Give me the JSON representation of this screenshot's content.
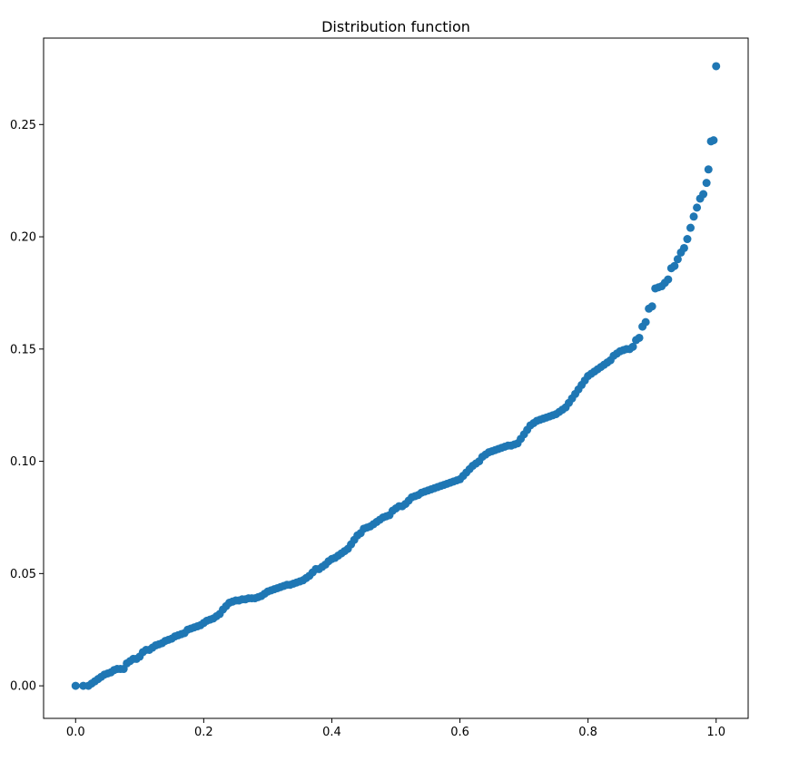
{
  "chart_data": {
    "type": "scatter",
    "title": "Distribution function",
    "xlabel": "",
    "ylabel": "",
    "xlim": [
      -0.05,
      1.05
    ],
    "ylim": [
      -0.0145,
      0.2885
    ],
    "xticks": [
      0.0,
      0.2,
      0.4,
      0.6,
      0.8,
      1.0
    ],
    "xtick_labels": [
      "0.0",
      "0.2",
      "0.4",
      "0.6",
      "0.8",
      "1.0"
    ],
    "yticks": [
      0.0,
      0.05,
      0.1,
      0.15,
      0.2,
      0.25
    ],
    "ytick_labels": [
      "0.00",
      "0.05",
      "0.10",
      "0.15",
      "0.20",
      "0.25"
    ],
    "grid": false,
    "marker_color": "#1f77b4",
    "points": [
      [
        0.0,
        0.0
      ],
      [
        0.012,
        0.0
      ],
      [
        0.02,
        0.0
      ],
      [
        0.025,
        0.001
      ],
      [
        0.03,
        0.002
      ],
      [
        0.035,
        0.003
      ],
      [
        0.04,
        0.004
      ],
      [
        0.045,
        0.005
      ],
      [
        0.05,
        0.0055
      ],
      [
        0.055,
        0.006
      ],
      [
        0.06,
        0.007
      ],
      [
        0.065,
        0.0075
      ],
      [
        0.07,
        0.0075
      ],
      [
        0.075,
        0.0075
      ],
      [
        0.08,
        0.01
      ],
      [
        0.085,
        0.011
      ],
      [
        0.09,
        0.012
      ],
      [
        0.095,
        0.012
      ],
      [
        0.1,
        0.013
      ],
      [
        0.105,
        0.015
      ],
      [
        0.11,
        0.016
      ],
      [
        0.115,
        0.016
      ],
      [
        0.12,
        0.017
      ],
      [
        0.125,
        0.018
      ],
      [
        0.13,
        0.0185
      ],
      [
        0.135,
        0.019
      ],
      [
        0.14,
        0.02
      ],
      [
        0.145,
        0.0205
      ],
      [
        0.15,
        0.021
      ],
      [
        0.155,
        0.022
      ],
      [
        0.16,
        0.0225
      ],
      [
        0.165,
        0.023
      ],
      [
        0.17,
        0.0235
      ],
      [
        0.175,
        0.025
      ],
      [
        0.18,
        0.0255
      ],
      [
        0.185,
        0.026
      ],
      [
        0.19,
        0.0265
      ],
      [
        0.195,
        0.027
      ],
      [
        0.2,
        0.028
      ],
      [
        0.205,
        0.029
      ],
      [
        0.21,
        0.0295
      ],
      [
        0.215,
        0.03
      ],
      [
        0.22,
        0.031
      ],
      [
        0.225,
        0.032
      ],
      [
        0.23,
        0.034
      ],
      [
        0.235,
        0.0355
      ],
      [
        0.24,
        0.037
      ],
      [
        0.245,
        0.0375
      ],
      [
        0.25,
        0.038
      ],
      [
        0.255,
        0.038
      ],
      [
        0.26,
        0.0385
      ],
      [
        0.265,
        0.0385
      ],
      [
        0.27,
        0.039
      ],
      [
        0.275,
        0.039
      ],
      [
        0.28,
        0.039
      ],
      [
        0.285,
        0.0395
      ],
      [
        0.29,
        0.04
      ],
      [
        0.295,
        0.041
      ],
      [
        0.3,
        0.042
      ],
      [
        0.305,
        0.0425
      ],
      [
        0.31,
        0.043
      ],
      [
        0.315,
        0.0435
      ],
      [
        0.32,
        0.044
      ],
      [
        0.325,
        0.0445
      ],
      [
        0.33,
        0.045
      ],
      [
        0.335,
        0.045
      ],
      [
        0.34,
        0.0455
      ],
      [
        0.345,
        0.046
      ],
      [
        0.35,
        0.0465
      ],
      [
        0.355,
        0.047
      ],
      [
        0.36,
        0.048
      ],
      [
        0.365,
        0.049
      ],
      [
        0.37,
        0.0505
      ],
      [
        0.375,
        0.052
      ],
      [
        0.38,
        0.052
      ],
      [
        0.385,
        0.053
      ],
      [
        0.39,
        0.054
      ],
      [
        0.395,
        0.0555
      ],
      [
        0.4,
        0.0565
      ],
      [
        0.405,
        0.057
      ],
      [
        0.41,
        0.058
      ],
      [
        0.415,
        0.059
      ],
      [
        0.42,
        0.06
      ],
      [
        0.425,
        0.061
      ],
      [
        0.43,
        0.063
      ],
      [
        0.435,
        0.065
      ],
      [
        0.44,
        0.067
      ],
      [
        0.445,
        0.068
      ],
      [
        0.45,
        0.07
      ],
      [
        0.455,
        0.0705
      ],
      [
        0.46,
        0.071
      ],
      [
        0.465,
        0.072
      ],
      [
        0.47,
        0.073
      ],
      [
        0.475,
        0.074
      ],
      [
        0.48,
        0.075
      ],
      [
        0.485,
        0.0755
      ],
      [
        0.49,
        0.076
      ],
      [
        0.495,
        0.078
      ],
      [
        0.5,
        0.079
      ],
      [
        0.505,
        0.08
      ],
      [
        0.51,
        0.08
      ],
      [
        0.515,
        0.081
      ],
      [
        0.52,
        0.0825
      ],
      [
        0.525,
        0.084
      ],
      [
        0.53,
        0.0845
      ],
      [
        0.535,
        0.085
      ],
      [
        0.54,
        0.086
      ],
      [
        0.545,
        0.0865
      ],
      [
        0.55,
        0.087
      ],
      [
        0.555,
        0.0875
      ],
      [
        0.56,
        0.088
      ],
      [
        0.565,
        0.0885
      ],
      [
        0.57,
        0.089
      ],
      [
        0.575,
        0.0895
      ],
      [
        0.58,
        0.09
      ],
      [
        0.585,
        0.0905
      ],
      [
        0.59,
        0.091
      ],
      [
        0.595,
        0.0915
      ],
      [
        0.6,
        0.092
      ],
      [
        0.605,
        0.0935
      ],
      [
        0.61,
        0.095
      ],
      [
        0.615,
        0.0965
      ],
      [
        0.62,
        0.098
      ],
      [
        0.625,
        0.099
      ],
      [
        0.63,
        0.1
      ],
      [
        0.635,
        0.102
      ],
      [
        0.64,
        0.103
      ],
      [
        0.645,
        0.104
      ],
      [
        0.65,
        0.1045
      ],
      [
        0.655,
        0.105
      ],
      [
        0.66,
        0.1055
      ],
      [
        0.665,
        0.106
      ],
      [
        0.67,
        0.1065
      ],
      [
        0.675,
        0.107
      ],
      [
        0.68,
        0.107
      ],
      [
        0.685,
        0.1075
      ],
      [
        0.69,
        0.108
      ],
      [
        0.695,
        0.11
      ],
      [
        0.7,
        0.112
      ],
      [
        0.705,
        0.114
      ],
      [
        0.71,
        0.116
      ],
      [
        0.715,
        0.117
      ],
      [
        0.72,
        0.118
      ],
      [
        0.725,
        0.1185
      ],
      [
        0.73,
        0.119
      ],
      [
        0.735,
        0.1195
      ],
      [
        0.74,
        0.12
      ],
      [
        0.745,
        0.1205
      ],
      [
        0.75,
        0.121
      ],
      [
        0.755,
        0.122
      ],
      [
        0.76,
        0.123
      ],
      [
        0.765,
        0.124
      ],
      [
        0.77,
        0.126
      ],
      [
        0.775,
        0.128
      ],
      [
        0.78,
        0.13
      ],
      [
        0.785,
        0.132
      ],
      [
        0.79,
        0.134
      ],
      [
        0.795,
        0.136
      ],
      [
        0.8,
        0.138
      ],
      [
        0.805,
        0.139
      ],
      [
        0.81,
        0.14
      ],
      [
        0.815,
        0.141
      ],
      [
        0.82,
        0.142
      ],
      [
        0.825,
        0.143
      ],
      [
        0.83,
        0.144
      ],
      [
        0.835,
        0.145
      ],
      [
        0.84,
        0.147
      ],
      [
        0.845,
        0.148
      ],
      [
        0.85,
        0.149
      ],
      [
        0.855,
        0.1495
      ],
      [
        0.86,
        0.15
      ],
      [
        0.865,
        0.15
      ],
      [
        0.87,
        0.151
      ],
      [
        0.875,
        0.154
      ],
      [
        0.88,
        0.155
      ],
      [
        0.885,
        0.16
      ],
      [
        0.89,
        0.162
      ],
      [
        0.895,
        0.168
      ],
      [
        0.9,
        0.169
      ],
      [
        0.905,
        0.177
      ],
      [
        0.91,
        0.1775
      ],
      [
        0.915,
        0.178
      ],
      [
        0.92,
        0.1795
      ],
      [
        0.925,
        0.181
      ],
      [
        0.93,
        0.186
      ],
      [
        0.935,
        0.187
      ],
      [
        0.94,
        0.19
      ],
      [
        0.945,
        0.193
      ],
      [
        0.95,
        0.195
      ],
      [
        0.955,
        0.199
      ],
      [
        0.96,
        0.204
      ],
      [
        0.965,
        0.209
      ],
      [
        0.97,
        0.213
      ],
      [
        0.975,
        0.217
      ],
      [
        0.98,
        0.219
      ],
      [
        0.985,
        0.224
      ],
      [
        0.988,
        0.23
      ],
      [
        0.992,
        0.2425
      ],
      [
        0.996,
        0.243
      ],
      [
        1.0,
        0.276
      ]
    ]
  }
}
